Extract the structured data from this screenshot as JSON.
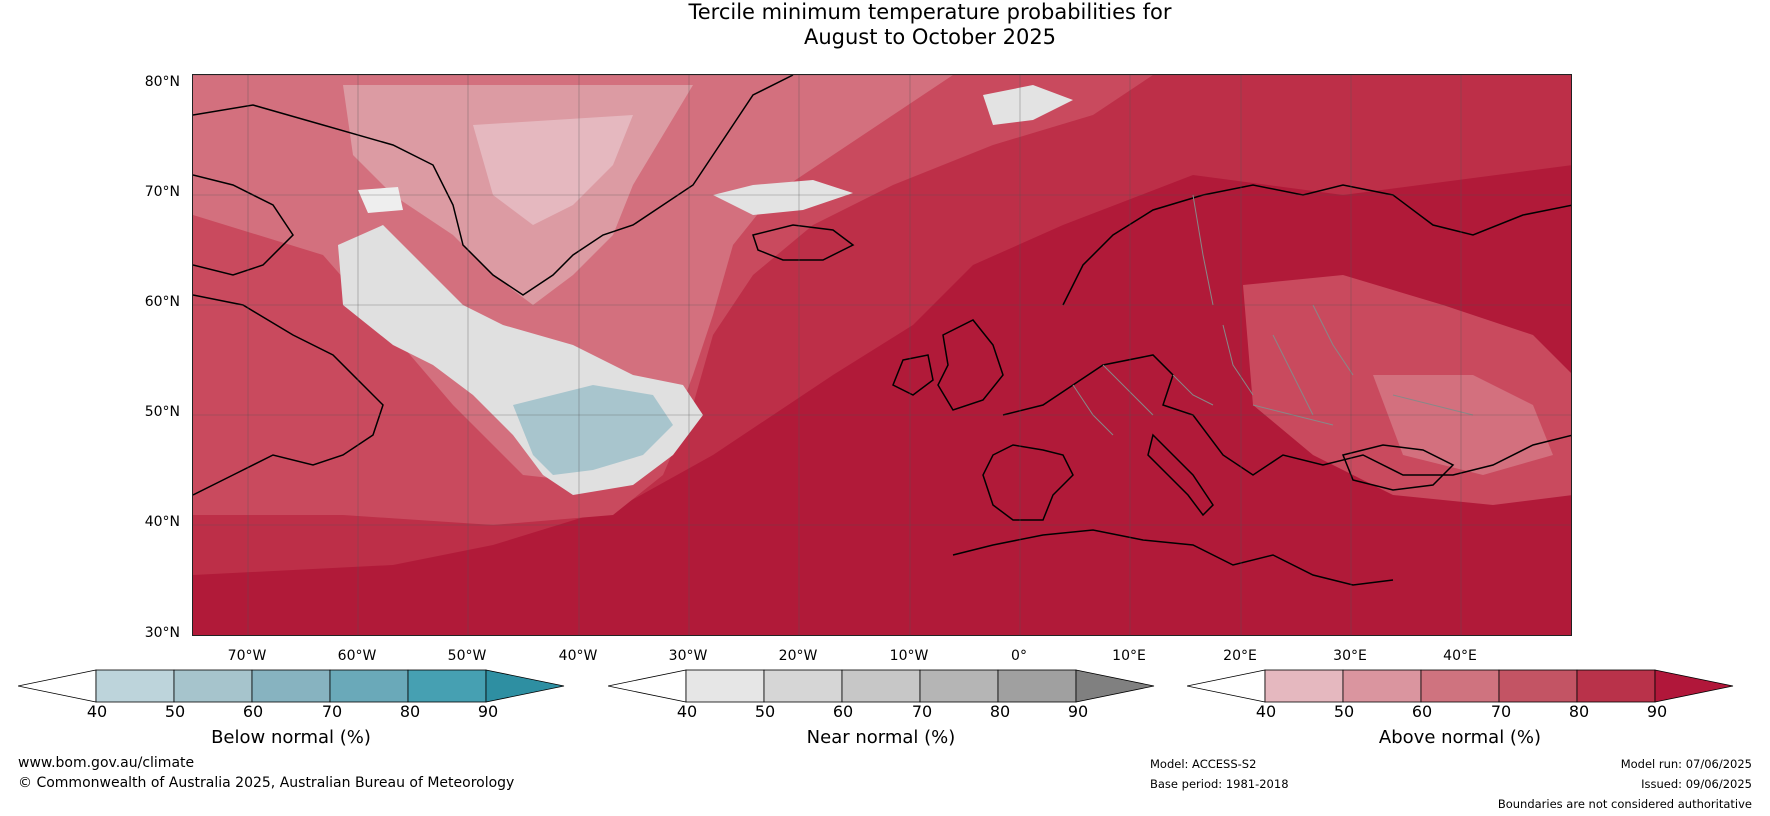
{
  "title": {
    "line1": "Tercile minimum temperature probabilities for",
    "line2": "August to October 2025"
  },
  "map": {
    "lat_labels": [
      "80°N",
      "70°N",
      "60°N",
      "50°N",
      "40°N",
      "30°N"
    ],
    "lon_labels": [
      "70°W",
      "60°W",
      "50°W",
      "40°W",
      "30°W",
      "20°W",
      "10°W",
      "0°",
      "10°E",
      "20°E",
      "30°E",
      "40°E"
    ],
    "lat_range": [
      30,
      80.5
    ],
    "lon_range": [
      -75,
      50
    ],
    "colors": {
      "above_90": "#b11a39",
      "above_80": "#bd2f48",
      "above_70": "#c94a5e",
      "above_60": "#d3707e",
      "above_50": "#dc9ba3",
      "above_40": "#e5b8bf",
      "near_40": "#e9e9e9",
      "near_50": "#d9d9d9",
      "below_50": "#a8c5cd",
      "coastline": "#000000",
      "borders": "#888888",
      "grid": "#555555"
    }
  },
  "colorbars": {
    "below": {
      "label": "Below normal (%)",
      "ticks": [
        "40",
        "50",
        "60",
        "70",
        "80",
        "90"
      ],
      "colors": [
        "#ffffff",
        "#bdd4db",
        "#a6c4cc",
        "#87b3c0",
        "#6aa9b9",
        "#46a0b2",
        "#2e8fa2"
      ]
    },
    "near": {
      "label": "Near normal (%)",
      "ticks": [
        "40",
        "50",
        "60",
        "70",
        "80",
        "90"
      ],
      "colors": [
        "#ffffff",
        "#e6e6e6",
        "#d6d6d6",
        "#c7c7c7",
        "#b5b5b5",
        "#a0a0a0",
        "#808080"
      ]
    },
    "above": {
      "label": "Above normal (%)",
      "ticks": [
        "40",
        "50",
        "60",
        "70",
        "80",
        "90"
      ],
      "colors": [
        "#ffffff",
        "#e5b8bf",
        "#da959f",
        "#cf737f",
        "#c35464",
        "#b9324a",
        "#b1173a"
      ]
    }
  },
  "footer": {
    "website": "www.bom.gov.au/climate",
    "copyright": "© Commonwealth of Australia 2025, Australian Bureau of Meteorology",
    "model": "Model: ACCESS-S2",
    "base_period": "Base period: 1981-2018",
    "model_run": "Model run: 07/06/2025",
    "issued": "Issued: 09/06/2025",
    "disclaimer": "Boundaries are not considered authoritative"
  }
}
